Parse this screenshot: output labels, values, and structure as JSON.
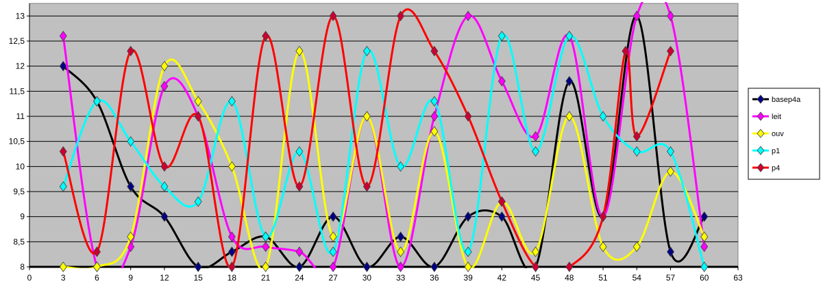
{
  "chart_data": {
    "type": "line",
    "smooth": true,
    "title": "",
    "xlabel": "",
    "ylabel": "",
    "xlim": [
      0,
      63
    ],
    "ylim": [
      8,
      13.25
    ],
    "x_ticks": [
      "0",
      "3",
      "6",
      "9",
      "12",
      "15",
      "18",
      "21",
      "24",
      "27",
      "30",
      "33",
      "36",
      "39",
      "42",
      "45",
      "48",
      "51",
      "54",
      "57",
      "60",
      "63"
    ],
    "y_ticks": [
      "8",
      "8,5",
      "9",
      "9,5",
      "10",
      "10,5",
      "11",
      "11,5",
      "12",
      "12,5",
      "13"
    ],
    "grid": true,
    "plot_background": "#c0c0c0",
    "legend_position": "right",
    "series": [
      {
        "name": "basep4a",
        "color": "#000000",
        "marker_color": "#000080",
        "points": [
          [
            3,
            12
          ],
          [
            6,
            11.3
          ],
          [
            9,
            9.6
          ],
          [
            12,
            9
          ],
          [
            15,
            8
          ],
          [
            18,
            8.3
          ],
          [
            21,
            8.6
          ],
          [
            24,
            8
          ],
          [
            27,
            9
          ],
          [
            30,
            8
          ],
          [
            33,
            8.6
          ],
          [
            36,
            8
          ],
          [
            39,
            9
          ],
          [
            42,
            9
          ],
          [
            45,
            8
          ],
          [
            48,
            11.7
          ],
          [
            51,
            9
          ],
          [
            54,
            13
          ],
          [
            57,
            8.3
          ],
          [
            60,
            9
          ]
        ]
      },
      {
        "name": "leit",
        "color": "#ff00ff",
        "marker_color": "#ff00ff",
        "points": [
          [
            3,
            12.6
          ],
          [
            6,
            8
          ],
          [
            9,
            8.4
          ],
          [
            12,
            11.6
          ],
          [
            15,
            11
          ],
          [
            18,
            8.6
          ],
          [
            21,
            8.4
          ],
          [
            24,
            8.3
          ],
          [
            27,
            8
          ],
          [
            30,
            11
          ],
          [
            33,
            8
          ],
          [
            36,
            11
          ],
          [
            39,
            13
          ],
          [
            42,
            11.7
          ],
          [
            45,
            10.6
          ],
          [
            48,
            12.6
          ],
          [
            51,
            9
          ],
          [
            54,
            13
          ],
          [
            57,
            13
          ],
          [
            60,
            8.4
          ]
        ]
      },
      {
        "name": "ouv",
        "color": "#ffff00",
        "marker_color": "#ffff00",
        "points": [
          [
            3,
            8
          ],
          [
            6,
            8
          ],
          [
            9,
            8.6
          ],
          [
            12,
            12
          ],
          [
            15,
            11.3
          ],
          [
            18,
            10
          ],
          [
            21,
            8
          ],
          [
            24,
            12.3
          ],
          [
            27,
            8.6
          ],
          [
            30,
            11
          ],
          [
            33,
            8.3
          ],
          [
            36,
            10.7
          ],
          [
            39,
            8
          ],
          [
            42,
            9.3
          ],
          [
            45,
            8.3
          ],
          [
            48,
            11
          ],
          [
            51,
            8.4
          ],
          [
            54,
            8.4
          ],
          [
            57,
            9.9
          ],
          [
            60,
            8.6
          ]
        ]
      },
      {
        "name": "p1",
        "color": "#00ffff",
        "marker_color": "#00ffff",
        "points": [
          [
            3,
            9.6
          ],
          [
            6,
            11.3
          ],
          [
            9,
            10.5
          ],
          [
            12,
            9.6
          ],
          [
            15,
            9.3
          ],
          [
            18,
            11.3
          ],
          [
            21,
            8.6
          ],
          [
            24,
            10.3
          ],
          [
            27,
            8.3
          ],
          [
            30,
            12.3
          ],
          [
            33,
            10
          ],
          [
            36,
            11.3
          ],
          [
            39,
            8.3
          ],
          [
            42,
            12.6
          ],
          [
            45,
            10.3
          ],
          [
            48,
            12.6
          ],
          [
            51,
            11
          ],
          [
            54,
            10.3
          ],
          [
            57,
            10.3
          ],
          [
            60,
            8
          ]
        ]
      },
      {
        "name": "p4",
        "color": "#ff0000",
        "marker_color": "#cc0033",
        "points": [
          [
            3,
            10.3
          ],
          [
            6,
            8.3
          ],
          [
            9,
            12.3
          ],
          [
            12,
            10
          ],
          [
            15,
            11
          ],
          [
            18,
            8
          ],
          [
            21,
            12.6
          ],
          [
            24,
            9.6
          ],
          [
            27,
            13
          ],
          [
            30,
            9.6
          ],
          [
            33,
            13
          ],
          [
            36,
            12.3
          ],
          [
            39,
            11
          ],
          [
            42,
            9.3
          ],
          [
            45,
            8
          ],
          [
            48,
            8
          ],
          [
            51,
            9
          ],
          [
            53,
            12.3
          ],
          [
            54,
            10.6
          ],
          [
            57,
            12.3
          ]
        ]
      }
    ]
  }
}
